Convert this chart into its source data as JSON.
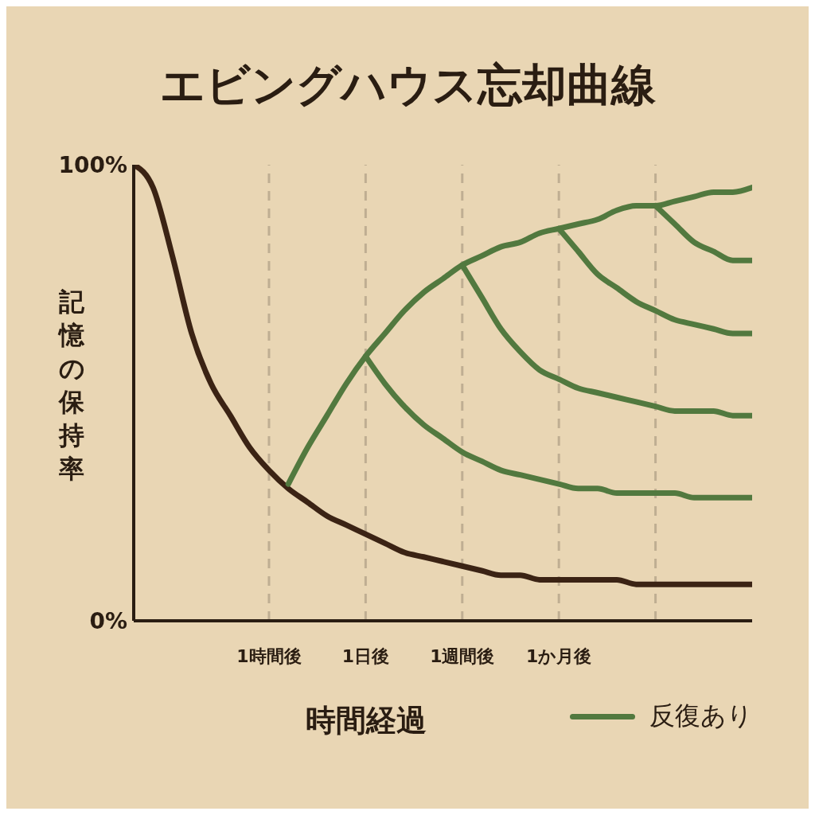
{
  "chart_data": {
    "type": "line",
    "title": "エビングハウス忘却曲線",
    "xlabel": "時間経過",
    "ylabel": "記憶の保持率",
    "categories": [
      null,
      null,
      null,
      null,
      null,
      null,
      null,
      "1時間後",
      null,
      null,
      null,
      null,
      "1日後",
      null,
      null,
      null,
      null,
      "1週間後",
      null,
      null,
      null,
      null,
      "1か月後",
      null,
      null,
      null,
      null,
      null,
      null,
      null,
      null,
      null,
      null
    ],
    "ylim": [
      0,
      100
    ],
    "yticks": [
      {
        "value": 0,
        "label": "0%"
      },
      {
        "value": 100,
        "label": "100%"
      }
    ],
    "grid": "x",
    "legend": "bottom right",
    "series": [
      {
        "color": "#3b2314",
        "values": [
          100,
          95,
          80,
          63,
          52,
          45,
          38,
          33,
          29,
          26,
          23,
          21,
          19,
          17,
          15,
          14,
          13,
          12,
          11,
          10,
          10,
          9,
          9,
          9,
          9,
          9,
          8,
          8,
          8,
          8,
          8,
          8,
          8
        ]
      },
      {
        "name": "反復あり",
        "color": "#52793f",
        "values": [
          null,
          null,
          null,
          null,
          null,
          null,
          null,
          null,
          30,
          38,
          45,
          52,
          58,
          63,
          68,
          72,
          75,
          78,
          80,
          82,
          83,
          85,
          86,
          87,
          88,
          90,
          91,
          91,
          92,
          93,
          94,
          94,
          95
        ]
      },
      {
        "color": "#52793f",
        "values": [
          null,
          null,
          null,
          null,
          null,
          null,
          null,
          null,
          null,
          null,
          null,
          null,
          58,
          52,
          47,
          43,
          40,
          37,
          35,
          33,
          32,
          31,
          30,
          29,
          29,
          28,
          28,
          28,
          28,
          27,
          27,
          27,
          27
        ]
      },
      {
        "color": "#52793f",
        "values": [
          null,
          null,
          null,
          null,
          null,
          null,
          null,
          null,
          null,
          null,
          null,
          null,
          null,
          null,
          null,
          null,
          null,
          78,
          71,
          64,
          59,
          55,
          53,
          51,
          50,
          49,
          48,
          47,
          46,
          46,
          46,
          45,
          45
        ]
      },
      {
        "color": "#52793f",
        "values": [
          null,
          null,
          null,
          null,
          null,
          null,
          null,
          null,
          null,
          null,
          null,
          null,
          null,
          null,
          null,
          null,
          null,
          null,
          null,
          null,
          null,
          null,
          86,
          81,
          76,
          73,
          70,
          68,
          66,
          65,
          64,
          63,
          63
        ]
      },
      {
        "color": "#52793f",
        "values": [
          null,
          null,
          null,
          null,
          null,
          null,
          null,
          null,
          null,
          null,
          null,
          null,
          null,
          null,
          null,
          null,
          null,
          null,
          null,
          null,
          null,
          null,
          null,
          null,
          null,
          null,
          null,
          91,
          87,
          83,
          81,
          79,
          79
        ]
      }
    ]
  }
}
